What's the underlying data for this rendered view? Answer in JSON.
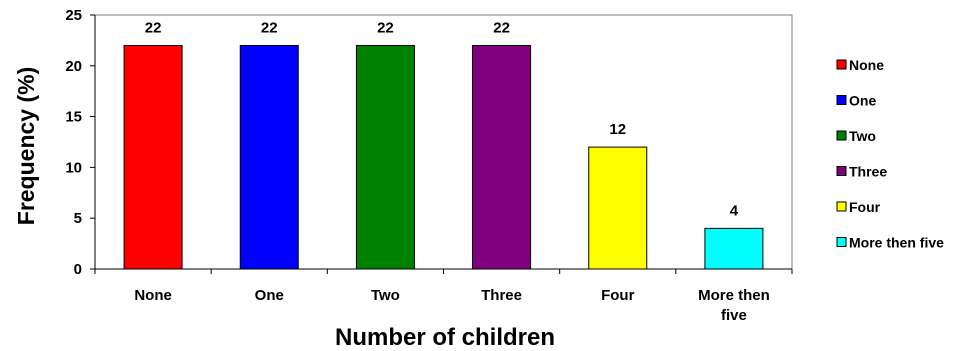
{
  "chart_data": {
    "type": "bar",
    "categories": [
      "None",
      "One",
      "Two",
      "Three",
      "Four",
      "More then five"
    ],
    "category_labels": [
      [
        "None"
      ],
      [
        "One"
      ],
      [
        "Two"
      ],
      [
        "Three"
      ],
      [
        "Four"
      ],
      [
        "More then",
        "five"
      ]
    ],
    "values": [
      22,
      22,
      22,
      22,
      12,
      4
    ],
    "colors": [
      "#ff0000",
      "#0000ff",
      "#008000",
      "#800080",
      "#ffff00",
      "#00ffff"
    ],
    "title": "",
    "xlabel": "Number of children",
    "ylabel": "Frequency (%)",
    "ylim": [
      0,
      25
    ],
    "yticks": [
      0,
      5,
      10,
      15,
      20,
      25
    ],
    "grid": false,
    "data_labels": true,
    "legend": {
      "placement": "right",
      "entries": [
        "None",
        "One",
        "Two",
        "Three",
        "Four",
        "More then five"
      ]
    }
  }
}
